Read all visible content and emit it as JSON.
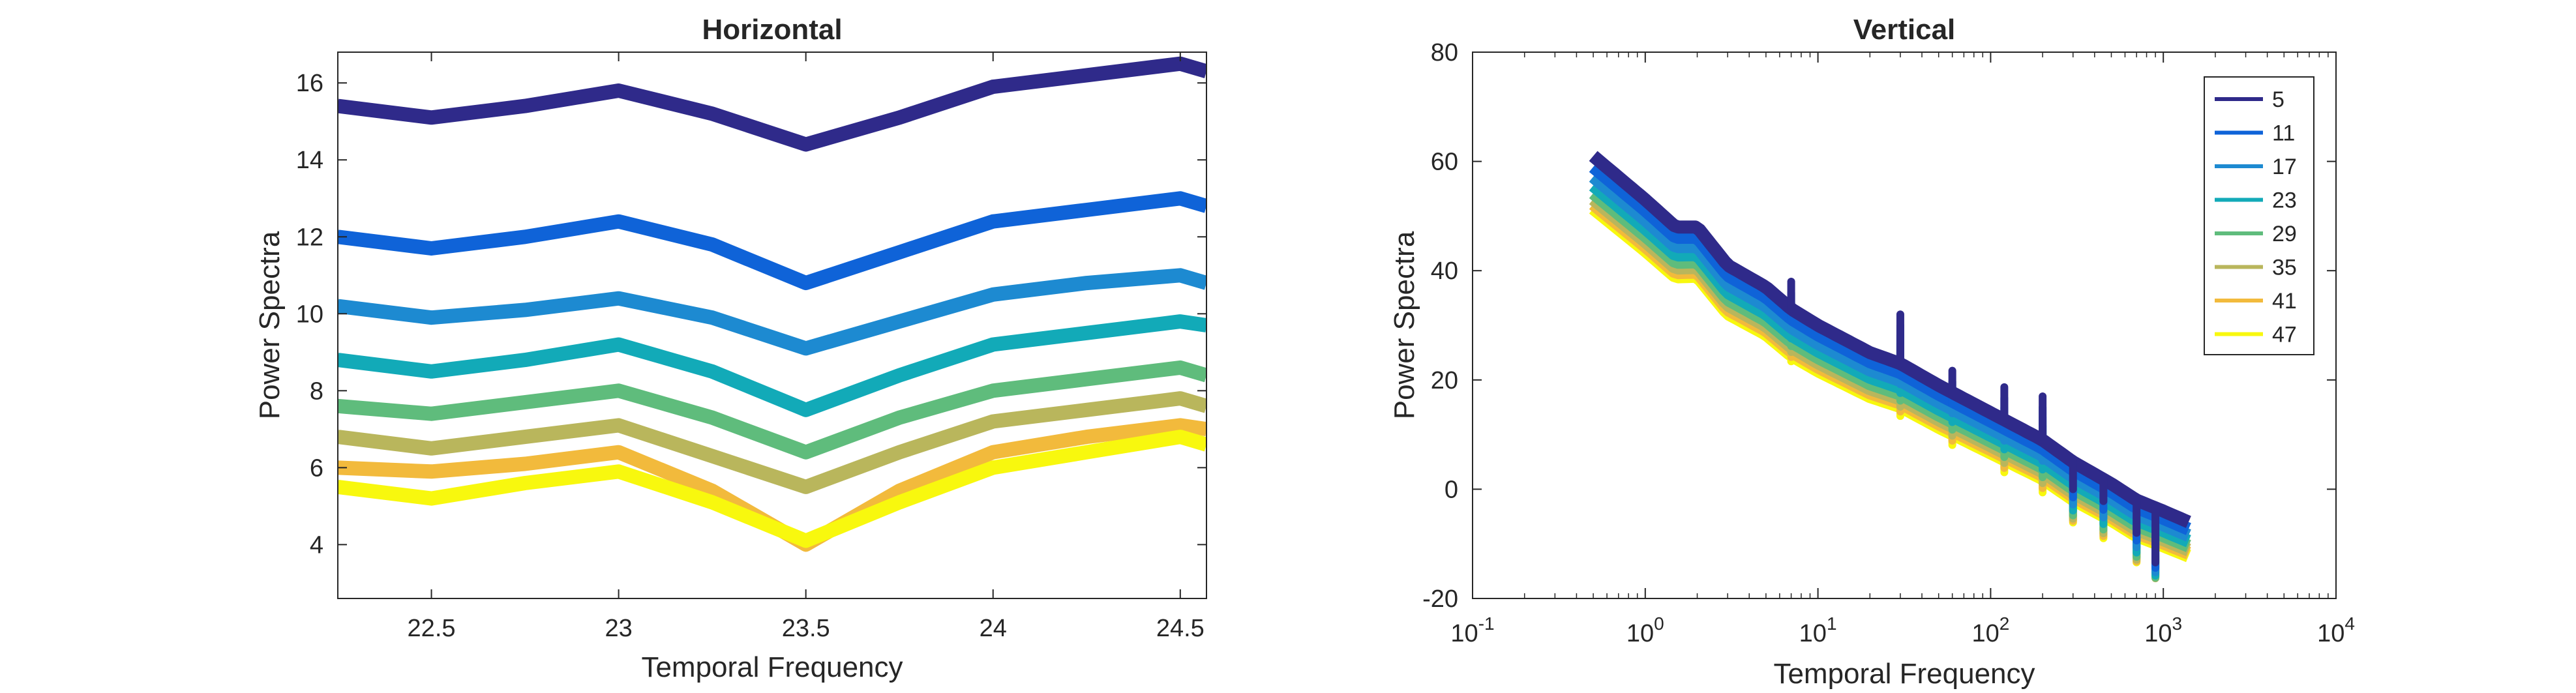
{
  "chart_data": [
    {
      "type": "line",
      "title": "Horizontal",
      "xlabel": "Temporal Frequency",
      "ylabel": "Power Spectra",
      "xlim": [
        22.25,
        24.57
      ],
      "ylim": [
        2.6,
        16.8
      ],
      "xticks": [
        22.5,
        23,
        23.5,
        24,
        24.5
      ],
      "xtick_labels": [
        "22.5",
        "23",
        "23.5",
        "24",
        "24.5"
      ],
      "yticks": [
        4,
        6,
        8,
        10,
        12,
        14,
        16
      ],
      "ytick_labels": [
        "4",
        "6",
        "8",
        "10",
        "12",
        "14",
        "16"
      ],
      "grid": false,
      "x": [
        22.25,
        22.5,
        22.75,
        23.0,
        23.25,
        23.5,
        23.75,
        24.0,
        24.25,
        24.5,
        24.57
      ],
      "series": [
        {
          "color": "#2f2a8a",
          "values": [
            15.4,
            15.1,
            15.4,
            15.8,
            15.2,
            14.4,
            15.1,
            15.9,
            16.2,
            16.5,
            16.3
          ]
        },
        {
          "color": "#0f63d8",
          "values": [
            12.0,
            11.7,
            12.0,
            12.4,
            11.8,
            10.8,
            11.6,
            12.4,
            12.7,
            13.0,
            12.8
          ]
        },
        {
          "color": "#1d8ad1",
          "values": [
            10.2,
            9.9,
            10.1,
            10.4,
            9.9,
            9.1,
            9.8,
            10.5,
            10.8,
            11.0,
            10.8
          ]
        },
        {
          "color": "#12aab8",
          "values": [
            8.8,
            8.5,
            8.8,
            9.2,
            8.5,
            7.5,
            8.4,
            9.2,
            9.5,
            9.8,
            9.7
          ]
        },
        {
          "color": "#5fbc7c",
          "values": [
            7.6,
            7.4,
            7.7,
            8.0,
            7.3,
            6.4,
            7.3,
            8.0,
            8.3,
            8.6,
            8.4
          ]
        },
        {
          "color": "#b9b65c",
          "values": [
            6.8,
            6.5,
            6.8,
            7.1,
            6.3,
            5.5,
            6.4,
            7.2,
            7.5,
            7.8,
            7.6
          ]
        },
        {
          "color": "#f2ba3c",
          "values": [
            6.0,
            5.9,
            6.1,
            6.4,
            5.4,
            4.0,
            5.4,
            6.4,
            6.8,
            7.1,
            7.0
          ]
        },
        {
          "color": "#f8f80e",
          "values": [
            5.5,
            5.2,
            5.6,
            5.9,
            5.1,
            4.1,
            5.1,
            6.0,
            6.4,
            6.8,
            6.6
          ]
        }
      ]
    },
    {
      "type": "line",
      "title": "Vertical",
      "xlabel": "Temporal Frequency",
      "ylabel": "Power Spectra",
      "xscale": "log",
      "xlim": [
        0.1,
        10000
      ],
      "ylim": [
        -20,
        80
      ],
      "xticks": [
        0.1,
        1,
        10,
        100,
        1000,
        10000
      ],
      "xtick_labels": [
        {
          "base": "10",
          "exp": "-1"
        },
        {
          "base": "10",
          "exp": "0"
        },
        {
          "base": "10",
          "exp": "1"
        },
        {
          "base": "10",
          "exp": "2"
        },
        {
          "base": "10",
          "exp": "3"
        },
        {
          "base": "10",
          "exp": "4"
        }
      ],
      "yticks": [
        -20,
        0,
        20,
        40,
        60,
        80
      ],
      "ytick_labels": [
        "-20",
        "0",
        "20",
        "40",
        "60",
        "80"
      ],
      "grid": false,
      "legend_position": "top-right",
      "series": [
        {
          "name": "5",
          "color": "#2f2a8a",
          "offset": 0
        },
        {
          "name": "11",
          "color": "#0f63d8",
          "offset": -2
        },
        {
          "name": "17",
          "color": "#1d8ad1",
          "offset": -3.8
        },
        {
          "name": "23",
          "color": "#12aab8",
          "offset": -5.4
        },
        {
          "name": "29",
          "color": "#5fbc7c",
          "offset": -6.8
        },
        {
          "name": "35",
          "color": "#b9b65c",
          "offset": -7.9
        },
        {
          "name": "41",
          "color": "#f2ba3c",
          "offset": -8.8
        },
        {
          "name": "47",
          "color": "#f8f80e",
          "offset": -9.6
        }
      ],
      "base_curve": {
        "x": [
          0.5,
          1.0,
          1.5,
          2.0,
          3.0,
          5.0,
          7.0,
          10,
          20,
          30,
          50,
          100,
          200,
          300,
          500,
          700,
          1000,
          1400
        ],
        "y": [
          61,
          53,
          48,
          48,
          41,
          37,
          33,
          30,
          25,
          23,
          19,
          14,
          9,
          5,
          1,
          -2,
          -4,
          -6
        ]
      },
      "spikes": [
        {
          "x": 7,
          "dy": 5
        },
        {
          "x": 30,
          "dy": 9
        },
        {
          "x": 60,
          "dy": 4
        },
        {
          "x": 120,
          "dy": 6
        },
        {
          "x": 200,
          "dy": 8
        },
        {
          "x": 300,
          "dy": -5
        },
        {
          "x": 450,
          "dy": -4
        },
        {
          "x": 700,
          "dy": -6
        },
        {
          "x": 900,
          "dy": -10
        }
      ]
    }
  ]
}
